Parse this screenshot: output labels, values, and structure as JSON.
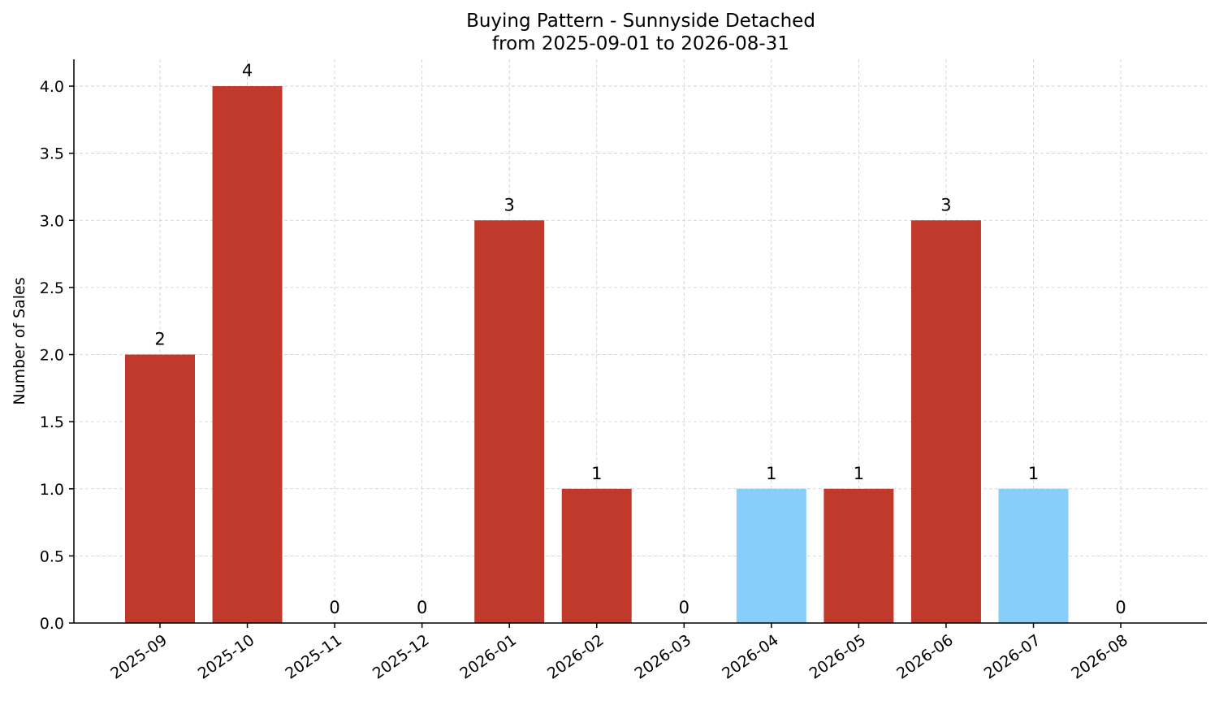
{
  "chart_data": {
    "type": "bar",
    "title": "Buying Pattern - Sunnyside Detached",
    "subtitle": "from 2025-09-01 to 2026-08-31",
    "xlabel": "",
    "ylabel": "Number of Sales",
    "categories": [
      "2025-09",
      "2025-10",
      "2025-11",
      "2025-12",
      "2026-01",
      "2026-02",
      "2026-03",
      "2026-04",
      "2026-05",
      "2026-06",
      "2026-07",
      "2026-08"
    ],
    "values": [
      2,
      4,
      0,
      0,
      3,
      1,
      0,
      1,
      1,
      3,
      1,
      0
    ],
    "data_labels": [
      "2",
      "4",
      "0",
      "0",
      "3",
      "1",
      "0",
      "1",
      "1",
      "3",
      "1",
      "0"
    ],
    "bar_colors": [
      "#c0392b",
      "#c0392b",
      "#c0392b",
      "#c0392b",
      "#c0392b",
      "#c0392b",
      "#c0392b",
      "#87cefa",
      "#c0392b",
      "#c0392b",
      "#87cefa",
      "#c0392b"
    ],
    "ylim": [
      0,
      4.2
    ],
    "yticks": [
      0,
      0.5,
      1,
      1.5,
      2,
      2.5,
      3,
      3.5,
      4
    ],
    "ytick_labels": [
      "0.0",
      "0.5",
      "1.0",
      "1.5",
      "2.0",
      "2.5",
      "3.0",
      "3.5",
      "4.0"
    ],
    "grid": true,
    "legend": "none"
  }
}
